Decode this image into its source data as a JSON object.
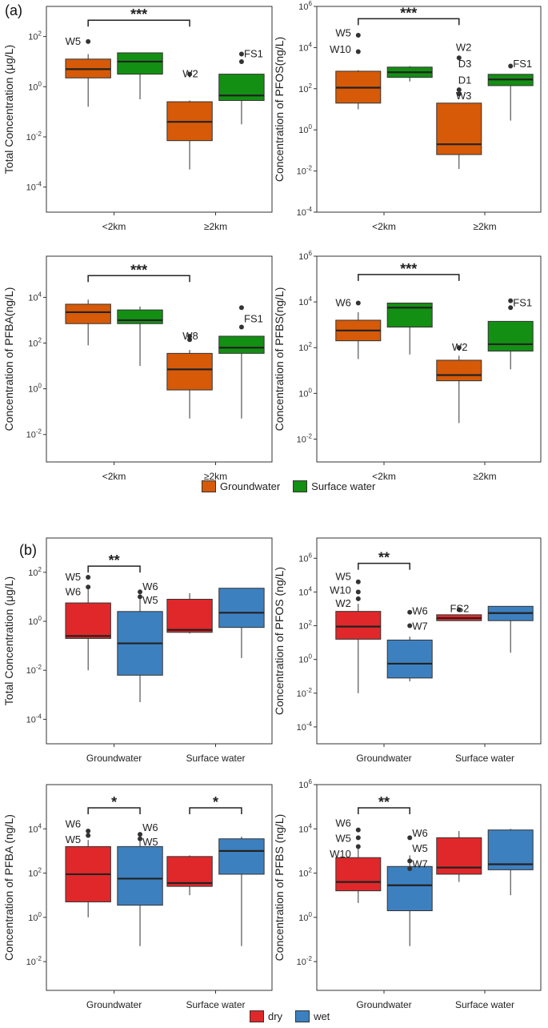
{
  "panel_labels": [
    "(a)",
    "(b)"
  ],
  "colors": {
    "groundwater": "#d65a08",
    "surface_water": "#138f13",
    "dry": "#e0282a",
    "wet": "#3d80c0",
    "axis": "#333333"
  },
  "legend_a": [
    {
      "label": "Groundwater",
      "color": "#d65a08"
    },
    {
      "label": "Surface water",
      "color": "#138f13"
    }
  ],
  "legend_b": [
    {
      "label": "dry",
      "color": "#e0282a"
    },
    {
      "label": "wet",
      "color": "#3d80c0"
    }
  ],
  "chart_data": [
    {
      "id": "a1",
      "type": "box",
      "ylabel": "Total Concentration (μg/L)",
      "ylog_range": [
        -5,
        3.2
      ],
      "yticks": [
        2,
        0,
        -2,
        -4
      ],
      "categories": [
        "<2km",
        "≥2km"
      ],
      "series_names": [
        "Groundwater",
        "Surface water"
      ],
      "boxes": [
        {
          "cat": 0,
          "series": 0,
          "low": -0.8,
          "q1": 0.35,
          "med": 0.7,
          "q3": 1.1,
          "high": 1.3,
          "outliers": [
            1.8
          ]
        },
        {
          "cat": 0,
          "series": 1,
          "low": -0.5,
          "q1": 0.5,
          "med": 1.0,
          "q3": 1.35,
          "high": 1.35,
          "outliers": []
        },
        {
          "cat": 1,
          "series": 0,
          "low": -3.3,
          "q1": -2.15,
          "med": -1.4,
          "q3": -0.6,
          "high": -0.55,
          "outliers": [
            0.5
          ]
        },
        {
          "cat": 1,
          "series": 1,
          "low": -1.5,
          "q1": -0.55,
          "med": -0.35,
          "q3": 0.5,
          "high": 0.5,
          "outliers": [
            1.0,
            1.3
          ]
        }
      ],
      "annotations": [
        {
          "text": "W5",
          "cat": 0,
          "pos": -0.42,
          "y": 1.8,
          "anchor": "end"
        },
        {
          "text": "W2",
          "cat": 1,
          "pos": -0.22,
          "y": 0.5,
          "anchor": "end"
        },
        {
          "text": "FS1",
          "cat": 1,
          "pos": 0.36,
          "y": 1.3,
          "anchor": "start"
        }
      ],
      "significance": {
        "from": 0,
        "to": 1,
        "y": 2.65,
        "label": "***"
      }
    },
    {
      "id": "a2",
      "type": "box",
      "ylabel": "Concentration of PFOS(ng/L)",
      "ylog_range": [
        -4,
        6
      ],
      "yticks": [
        6,
        4,
        2,
        0,
        -2,
        -4
      ],
      "categories": [
        "<2km",
        "≥2km"
      ],
      "series_names": [
        "Groundwater",
        "Surface water"
      ],
      "boxes": [
        {
          "cat": 0,
          "series": 0,
          "low": 1.0,
          "q1": 1.3,
          "med": 2.05,
          "q3": 2.85,
          "high": 2.9,
          "outliers": [
            3.8,
            4.6
          ]
        },
        {
          "cat": 0,
          "series": 1,
          "low": 2.35,
          "q1": 2.55,
          "med": 2.8,
          "q3": 3.05,
          "high": 3.1,
          "outliers": []
        },
        {
          "cat": 1,
          "series": 0,
          "low": -1.9,
          "q1": -1.2,
          "med": -0.7,
          "q3": 1.3,
          "high": 1.3,
          "outliers": [
            3.5,
            1.95,
            1.75
          ]
        },
        {
          "cat": 1,
          "series": 1,
          "low": 0.45,
          "q1": 2.15,
          "med": 2.45,
          "q3": 2.7,
          "high": 2.7,
          "outliers": [
            3.1
          ]
        }
      ],
      "annotations": [
        {
          "text": "W5",
          "cat": 0,
          "pos": -0.42,
          "y": 4.7,
          "anchor": "end"
        },
        {
          "text": "W10",
          "cat": 0,
          "pos": -0.42,
          "y": 3.9,
          "anchor": "end"
        },
        {
          "text": "W2",
          "cat": 1,
          "pos": -0.17,
          "y": 4.0,
          "anchor": "end"
        },
        {
          "text": "D3",
          "cat": 1,
          "pos": -0.17,
          "y": 3.2,
          "anchor": "end"
        },
        {
          "text": "D1",
          "cat": 1,
          "pos": -0.17,
          "y": 2.4,
          "anchor": "end"
        },
        {
          "text": "W3",
          "cat": 1,
          "pos": -0.17,
          "y": 1.65,
          "anchor": "end"
        },
        {
          "text": "FS1",
          "cat": 1,
          "pos": 0.36,
          "y": 3.2,
          "anchor": "start"
        }
      ],
      "significance": {
        "from": 0,
        "to": 1,
        "y": 5.4,
        "label": "***"
      }
    },
    {
      "id": "a3",
      "type": "box",
      "ylabel": "Concentration  of PFBA(ng/L)",
      "ylog_range": [
        -3.2,
        5.8
      ],
      "yticks": [
        4,
        2,
        0,
        -2
      ],
      "categories": [
        "<2km",
        "≥2km"
      ],
      "series_names": [
        "Groundwater",
        "Surface water"
      ],
      "boxes": [
        {
          "cat": 0,
          "series": 0,
          "low": 1.9,
          "q1": 2.85,
          "med": 3.35,
          "q3": 3.7,
          "high": 3.9,
          "outliers": []
        },
        {
          "cat": 0,
          "series": 1,
          "low": 1.0,
          "q1": 2.85,
          "med": 3.0,
          "q3": 3.45,
          "high": 3.6,
          "outliers": []
        },
        {
          "cat": 1,
          "series": 0,
          "low": -1.3,
          "q1": -0.05,
          "med": 0.85,
          "q3": 1.55,
          "high": 1.7,
          "outliers": [
            2.3,
            2.15
          ]
        },
        {
          "cat": 1,
          "series": 1,
          "low": -1.3,
          "q1": 1.55,
          "med": 1.8,
          "q3": 2.3,
          "high": 2.3,
          "outliers": [
            3.55,
            2.7
          ]
        }
      ],
      "annotations": [
        {
          "text": "W8",
          "cat": 1,
          "pos": -0.22,
          "y": 2.3,
          "anchor": "end"
        },
        {
          "text": "FS1",
          "cat": 1,
          "pos": 0.36,
          "y": 3.05,
          "anchor": "start"
        }
      ],
      "significance": {
        "from": 0,
        "to": 1,
        "y": 4.95,
        "label": "***"
      }
    },
    {
      "id": "a4",
      "type": "box",
      "ylabel": "Concentration of PFBS(ng/L)",
      "ylog_range": [
        -3,
        6
      ],
      "yticks": [
        6,
        4,
        2,
        0,
        -2
      ],
      "categories": [
        "<2km",
        "≥2km"
      ],
      "series_names": [
        "Groundwater",
        "Surface water"
      ],
      "boxes": [
        {
          "cat": 0,
          "series": 0,
          "low": 1.5,
          "q1": 2.3,
          "med": 2.75,
          "q3": 3.2,
          "high": 3.55,
          "outliers": [
            3.95
          ]
        },
        {
          "cat": 0,
          "series": 1,
          "low": 1.7,
          "q1": 2.9,
          "med": 3.75,
          "q3": 3.95,
          "high": 3.95,
          "outliers": []
        },
        {
          "cat": 1,
          "series": 0,
          "low": -1.3,
          "q1": 0.55,
          "med": 0.8,
          "q3": 1.45,
          "high": 1.65,
          "outliers": [
            2.0
          ]
        },
        {
          "cat": 1,
          "series": 1,
          "low": 1.05,
          "q1": 1.85,
          "med": 2.15,
          "q3": 3.15,
          "high": 3.15,
          "outliers": [
            4.05,
            3.75
          ]
        }
      ],
      "annotations": [
        {
          "text": "W6",
          "cat": 0,
          "pos": -0.42,
          "y": 3.95,
          "anchor": "end"
        },
        {
          "text": "W2",
          "cat": 1,
          "pos": -0.22,
          "y": 2.0,
          "anchor": "end"
        },
        {
          "text": "FS1",
          "cat": 1,
          "pos": 0.36,
          "y": 3.95,
          "anchor": "start"
        }
      ],
      "significance": {
        "from": 0,
        "to": 1,
        "y": 5.2,
        "label": "***"
      }
    },
    {
      "id": "b1",
      "type": "box",
      "ylabel": "Total Concentration (μg/L)",
      "ylog_range": [
        -5,
        3.4
      ],
      "yticks": [
        2,
        0,
        -2,
        -4
      ],
      "categories": [
        "Groundwater",
        "Surface water"
      ],
      "series_names": [
        "dry",
        "wet"
      ],
      "boxes": [
        {
          "cat": 0,
          "series": 0,
          "low": -2.0,
          "q1": -0.7,
          "med": -0.6,
          "q3": 0.75,
          "high": 1.3,
          "outliers": [
            1.8,
            1.4
          ]
        },
        {
          "cat": 0,
          "series": 1,
          "low": -3.3,
          "q1": -2.2,
          "med": -0.9,
          "q3": 0.4,
          "high": 0.9,
          "outliers": [
            1.2,
            1.0
          ]
        },
        {
          "cat": 1,
          "series": 0,
          "low": -0.5,
          "q1": -0.45,
          "med": -0.35,
          "q3": 0.9,
          "high": 1.15,
          "outliers": []
        },
        {
          "cat": 1,
          "series": 1,
          "low": -1.5,
          "q1": -0.25,
          "med": 0.35,
          "q3": 1.35,
          "high": 1.35,
          "outliers": []
        }
      ],
      "annotations": [
        {
          "text": "W5",
          "cat": 0,
          "pos": -0.42,
          "y": 1.8,
          "anchor": "end"
        },
        {
          "text": "W6",
          "cat": 0,
          "pos": -0.42,
          "y": 1.2,
          "anchor": "end"
        },
        {
          "text": "W6",
          "cat": 0,
          "pos": 0.36,
          "y": 1.4,
          "anchor": "start"
        },
        {
          "text": "W5",
          "cat": 0,
          "pos": 0.36,
          "y": 0.85,
          "anchor": "start"
        }
      ],
      "significance": {
        "from": 0,
        "to": 0.5,
        "y": 2.25,
        "label": "**",
        "within": 0
      },
      "bar_spread": "within"
    },
    {
      "id": "b2",
      "type": "box",
      "ylabel": "Concentration of PFOS (ng/L)",
      "ylog_range": [
        -5,
        7.2
      ],
      "yticks": [
        6,
        4,
        2,
        0,
        -2,
        -4
      ],
      "categories": [
        "Groundwater",
        "Surface water"
      ],
      "series_names": [
        "dry",
        "wet"
      ],
      "boxes": [
        {
          "cat": 0,
          "series": 0,
          "low": -2.0,
          "q1": 1.2,
          "med": 1.95,
          "q3": 2.85,
          "high": 3.3,
          "outliers": [
            4.6,
            4.0,
            3.6
          ]
        },
        {
          "cat": 0,
          "series": 1,
          "low": -1.3,
          "q1": -1.1,
          "med": -0.25,
          "q3": 1.15,
          "high": 1.35,
          "outliers": [
            2.8,
            2.0
          ]
        },
        {
          "cat": 1,
          "series": 0,
          "low": 2.3,
          "q1": 2.3,
          "med": 2.45,
          "q3": 2.65,
          "high": 2.65,
          "outliers": [
            2.95
          ]
        },
        {
          "cat": 1,
          "series": 1,
          "low": 0.4,
          "q1": 2.3,
          "med": 2.75,
          "q3": 3.15,
          "high": 3.15,
          "outliers": []
        }
      ],
      "annotations": [
        {
          "text": "W5",
          "cat": 0,
          "pos": -0.42,
          "y": 4.9,
          "anchor": "end"
        },
        {
          "text": "W10",
          "cat": 0,
          "pos": -0.42,
          "y": 4.1,
          "anchor": "end"
        },
        {
          "text": "W2",
          "cat": 0,
          "pos": -0.42,
          "y": 3.3,
          "anchor": "end"
        },
        {
          "text": "W6",
          "cat": 0,
          "pos": 0.36,
          "y": 2.85,
          "anchor": "start"
        },
        {
          "text": "W7",
          "cat": 0,
          "pos": 0.36,
          "y": 1.95,
          "anchor": "start"
        },
        {
          "text": "FS2",
          "cat": 1,
          "pos": -0.2,
          "y": 3.0,
          "anchor": "end"
        }
      ],
      "significance": {
        "from": 0,
        "to": 0.5,
        "y": 5.7,
        "label": "**",
        "within": 0
      },
      "bar_spread": "within"
    },
    {
      "id": "b3",
      "type": "box",
      "ylabel": "Concentration of PFBA (ng/L)",
      "ylog_range": [
        -3.3,
        6
      ],
      "yticks": [
        4,
        2,
        0,
        -2
      ],
      "categories": [
        "Groundwater",
        "Surface water"
      ],
      "series_names": [
        "dry",
        "wet"
      ],
      "boxes": [
        {
          "cat": 0,
          "series": 0,
          "low": 0.0,
          "q1": 0.7,
          "med": 1.95,
          "q3": 3.2,
          "high": 3.5,
          "outliers": [
            3.9,
            3.7
          ]
        },
        {
          "cat": 0,
          "series": 1,
          "low": -1.3,
          "q1": 0.55,
          "med": 1.75,
          "q3": 3.2,
          "high": 3.5,
          "outliers": [
            3.75,
            3.55
          ]
        },
        {
          "cat": 1,
          "series": 0,
          "low": 1.0,
          "q1": 1.4,
          "med": 1.55,
          "q3": 2.75,
          "high": 2.8,
          "outliers": []
        },
        {
          "cat": 1,
          "series": 1,
          "low": -1.3,
          "q1": 1.95,
          "med": 3.0,
          "q3": 3.55,
          "high": 3.65,
          "outliers": []
        }
      ],
      "annotations": [
        {
          "text": "W6",
          "cat": 0,
          "pos": -0.42,
          "y": 4.2,
          "anchor": "end"
        },
        {
          "text": "W5",
          "cat": 0,
          "pos": -0.42,
          "y": 3.5,
          "anchor": "end"
        },
        {
          "text": "W6",
          "cat": 0,
          "pos": 0.36,
          "y": 4.05,
          "anchor": "start"
        },
        {
          "text": "W5",
          "cat": 0,
          "pos": 0.36,
          "y": 3.4,
          "anchor": "start"
        }
      ],
      "significance_list": [
        {
          "from": 0,
          "to": 0.5,
          "y": 4.95,
          "label": "*",
          "within": 0
        },
        {
          "from": 0,
          "to": 0.5,
          "y": 4.95,
          "label": "*",
          "within": 1
        }
      ],
      "bar_spread": "within"
    },
    {
      "id": "b4",
      "type": "box",
      "ylabel": "Concentration of PFBS (ng/L)",
      "ylog_range": [
        -3.3,
        6
      ],
      "yticks": [
        6,
        4,
        2,
        0,
        -2
      ],
      "categories": [
        "Groundwater",
        "Surface water"
      ],
      "series_names": [
        "dry",
        "wet"
      ],
      "boxes": [
        {
          "cat": 0,
          "series": 0,
          "low": 0.65,
          "q1": 1.2,
          "med": 1.6,
          "q3": 2.7,
          "high": 3.1,
          "outliers": [
            3.95,
            3.6,
            3.2
          ]
        },
        {
          "cat": 0,
          "series": 1,
          "low": -1.3,
          "q1": 0.3,
          "med": 1.45,
          "q3": 2.3,
          "high": 2.8,
          "outliers": [
            3.6,
            2.55,
            2.2
          ]
        },
        {
          "cat": 1,
          "series": 0,
          "low": 1.6,
          "q1": 1.95,
          "med": 2.25,
          "q3": 3.6,
          "high": 3.9,
          "outliers": []
        },
        {
          "cat": 1,
          "series": 1,
          "low": 1.0,
          "q1": 2.15,
          "med": 2.4,
          "q3": 3.95,
          "high": 4.0,
          "outliers": []
        }
      ],
      "annotations": [
        {
          "text": "W6",
          "cat": 0,
          "pos": -0.42,
          "y": 4.25,
          "anchor": "end"
        },
        {
          "text": "W5",
          "cat": 0,
          "pos": -0.42,
          "y": 3.55,
          "anchor": "end"
        },
        {
          "text": "W10",
          "cat": 0,
          "pos": -0.42,
          "y": 2.85,
          "anchor": "end"
        },
        {
          "text": "W6",
          "cat": 0,
          "pos": 0.36,
          "y": 3.8,
          "anchor": "start"
        },
        {
          "text": "W5",
          "cat": 0,
          "pos": 0.36,
          "y": 3.1,
          "anchor": "start"
        },
        {
          "text": "W7",
          "cat": 0,
          "pos": 0.36,
          "y": 2.4,
          "anchor": "start"
        }
      ],
      "significance": {
        "from": 0,
        "to": 0.5,
        "y": 4.95,
        "label": "**",
        "within": 0
      },
      "bar_spread": "within"
    }
  ]
}
